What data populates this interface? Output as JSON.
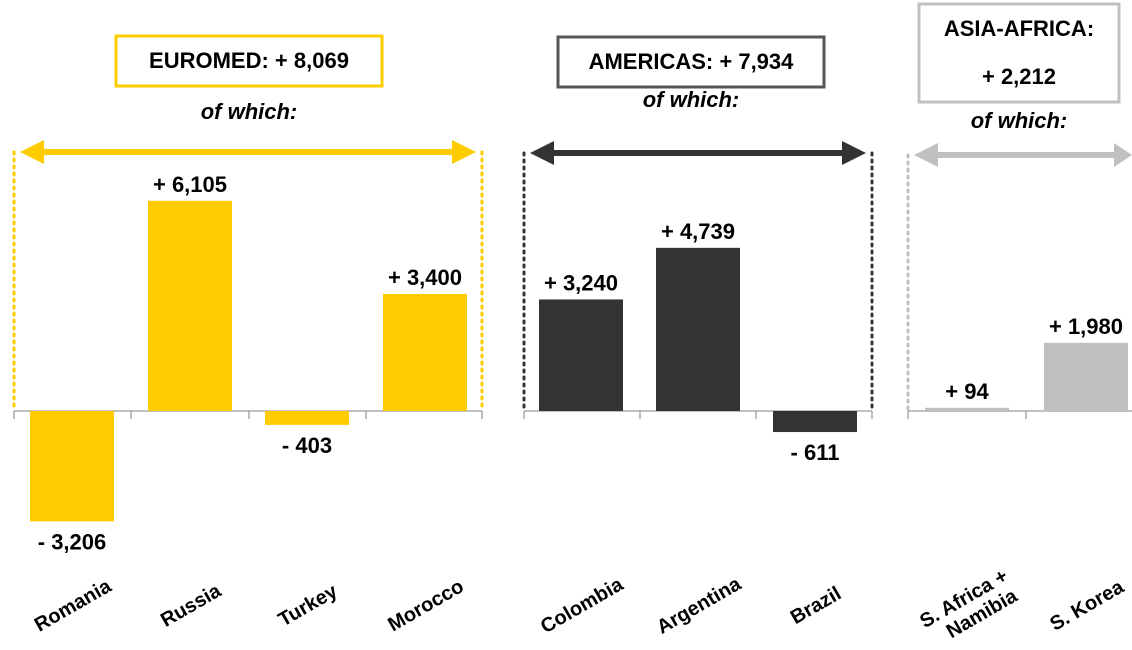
{
  "chart_data": {
    "type": "bar",
    "colors": {
      "EUROMED": "#ffcc00",
      "AMERICAS": "#333333",
      "ASIA-AFRICA": "#c0c0c0"
    },
    "groups": [
      {
        "key": "euromed",
        "color": "#ffcc00",
        "box_border": "#ffcc00",
        "title_lines": [
          "EUROMED: + 8,069"
        ],
        "subtitle": "of which:",
        "categories": [
          "Romania",
          "Russia",
          "Turkey",
          "Morocco"
        ],
        "values": [
          -3206,
          6105,
          -403,
          3400
        ],
        "value_labels": [
          "- 3,206",
          "+ 6,105",
          "- 403",
          "+ 3,400"
        ]
      },
      {
        "key": "americas",
        "color": "#333333",
        "box_border": "#555555",
        "title_lines": [
          "AMERICAS: + 7,934"
        ],
        "subtitle": "of which:",
        "categories": [
          "Colombia",
          "Argentina",
          "Brazil"
        ],
        "values": [
          3240,
          4739,
          -611
        ],
        "value_labels": [
          "+ 3,240",
          "+ 4,739",
          "- 611"
        ]
      },
      {
        "key": "asia-africa",
        "color": "#c0c0c0",
        "box_border": "#c0c0c0",
        "title_lines": [
          "ASIA-AFRICA:",
          "+ 2,212"
        ],
        "subtitle": "of which:",
        "categories": [
          "S. Africa +|Namibia",
          "S. Korea"
        ],
        "values": [
          94,
          1980
        ],
        "value_labels": [
          "+ 94",
          "+ 1,980"
        ]
      }
    ]
  }
}
